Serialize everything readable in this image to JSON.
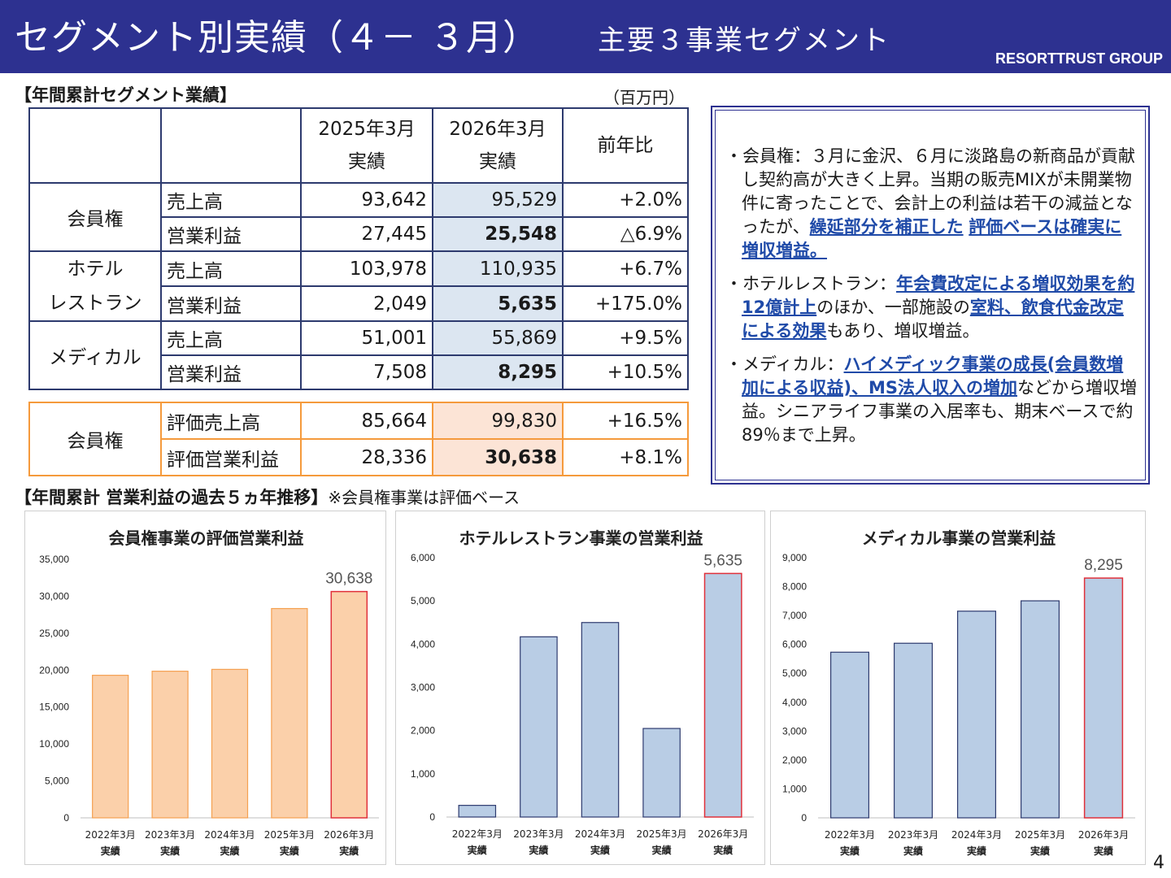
{
  "header": {
    "title": "セグメント別実績（４－ ３月）",
    "subtitle": "主要３事業セグメント",
    "brand": "RESORTTRUST GROUP"
  },
  "table_section": {
    "title": "【年間累計セグメント業績】",
    "unit": "（百万円）",
    "col1_line1": "2025年3月",
    "col1_line2": "実績",
    "col2_line1": "2026年3月",
    "col2_line2": "実績",
    "col3": "前年比",
    "rows": [
      {
        "segment": "会員権",
        "item": "売上高",
        "prev": "93,642",
        "curr": "95,529",
        "yoy": "+2.0%"
      },
      {
        "segment": "",
        "item": "営業利益",
        "prev": "27,445",
        "curr": "25,548",
        "yoy": "△6.9%"
      },
      {
        "segment": "ホテル",
        "segment2": "レストラン",
        "item": "売上高",
        "prev": "103,978",
        "curr": "110,935",
        "yoy": "+6.7%"
      },
      {
        "segment": "",
        "item": "営業利益",
        "prev": "2,049",
        "curr": "5,635",
        "yoy": "+175.0%"
      },
      {
        "segment": "メディカル",
        "item": "売上高",
        "prev": "51,001",
        "curr": "55,869",
        "yoy": "+9.5%"
      },
      {
        "segment": "",
        "item": "営業利益",
        "prev": "7,508",
        "curr": "8,295",
        "yoy": "+10.5%"
      }
    ],
    "eval_rows": [
      {
        "segment": "会員権",
        "item": "評価売上高",
        "prev": "85,664",
        "curr": "99,830",
        "yoy": "+16.5%"
      },
      {
        "segment": "",
        "item": "評価営業利益",
        "prev": "28,336",
        "curr": "30,638",
        "yoy": "+8.1%"
      }
    ]
  },
  "notes": {
    "n1_a": "・会員権：３月に金沢、６月に淡路島の新商品が貢献し契約高が大きく上昇。当期の販売MIXが未開業物件に寄ったことで、会計上の利益は若干の減益となったが、",
    "n1_b": "繰延部分を補正した",
    "n1_c": " ",
    "n1_d": "評価ベースは確実に増収増益。",
    "n2_a": "・ホテルレストラン：",
    "n2_b": "年会費改定による増収効果を約12億計上",
    "n2_c": "のほか、一部施設の",
    "n2_d": "室料、飲食代金改定による効果",
    "n2_e": "もあり、増収増益。",
    "n3_a": "・メディカル：",
    "n3_b": "ハイメディック事業の成長(会員数増加による収益)、MS法人収入の増加",
    "n3_c": "などから増収増益。シニアライフ事業の入居率も、期末ベースで約89％まで上昇。"
  },
  "chart_section": {
    "title": "【年間累計  営業利益の過去５ヵ年推移】",
    "note": "※会員権事業は評価ベース"
  },
  "chart_data": [
    {
      "type": "bar",
      "title": "会員権事業の評価営業利益",
      "categories": [
        "2022年3月\n実績",
        "2023年3月\n実績",
        "2024年3月\n実績",
        "2025年3月\n実績",
        "2026年3月\n実績"
      ],
      "values": [
        19300,
        19850,
        20100,
        28336,
        30638
      ],
      "ylim": [
        0,
        35000
      ],
      "yticks": [
        "0",
        "5,000",
        "10,000",
        "15,000",
        "20,000",
        "25,000",
        "30,000",
        "35,000"
      ],
      "data_label_last": "30,638",
      "fill": "#fbd0aa",
      "stroke": "#f5a050",
      "highlight_stroke": "#e0303a"
    },
    {
      "type": "bar",
      "title": "ホテルレストラン事業の営業利益",
      "categories": [
        "2022年3月\n実績",
        "2023年3月\n実績",
        "2024年3月\n実績",
        "2025年3月\n実績",
        "2026年3月\n実績"
      ],
      "values": [
        270,
        4170,
        4500,
        2049,
        5635
      ],
      "ylim": [
        0,
        6000
      ],
      "yticks": [
        "0",
        "1,000",
        "2,000",
        "3,000",
        "4,000",
        "5,000",
        "6,000"
      ],
      "data_label_last": "5,635",
      "fill": "#b9cde5",
      "stroke": "#2d3a6e",
      "highlight_stroke": "#e0303a"
    },
    {
      "type": "bar",
      "title": "メディカル事業の営業利益",
      "categories": [
        "2022年3月\n実績",
        "2023年3月\n実績",
        "2024年3月\n実績",
        "2025年3月\n実績",
        "2026年3月\n実績"
      ],
      "values": [
        5730,
        6040,
        7150,
        7508,
        8295
      ],
      "ylim": [
        0,
        9000
      ],
      "yticks": [
        "0",
        "1,000",
        "2,000",
        "3,000",
        "4,000",
        "5,000",
        "6,000",
        "7,000",
        "8,000",
        "9,000"
      ],
      "data_label_last": "8,295",
      "fill": "#b9cde5",
      "stroke": "#2d3a6e",
      "highlight_stroke": "#e0303a"
    }
  ],
  "page_number": "4"
}
